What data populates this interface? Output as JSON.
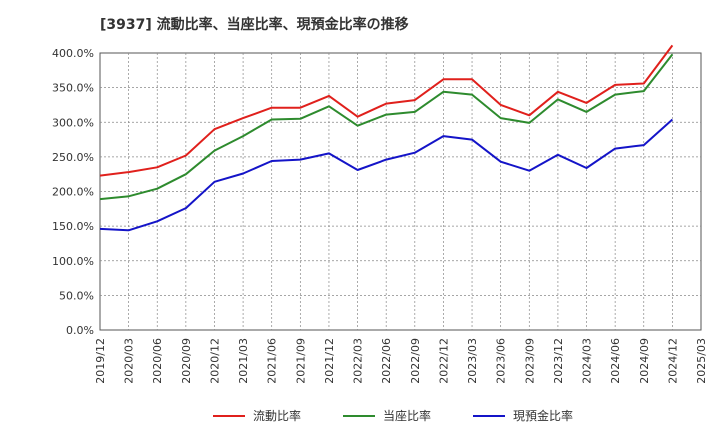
{
  "chart_data": {
    "type": "line",
    "title": "[3937]  流動比率、当座比率、現預金比率の推移",
    "xlabel": "",
    "ylabel": "",
    "ylim": [
      0,
      400
    ],
    "y_ticks": [
      "0.0%",
      "50.0%",
      "100.0%",
      "150.0%",
      "200.0%",
      "250.0%",
      "300.0%",
      "350.0%",
      "400.0%"
    ],
    "y_tick_values": [
      0,
      50,
      100,
      150,
      200,
      250,
      300,
      350,
      400
    ],
    "x_ticks": [
      "2019/12",
      "2020/03",
      "2020/06",
      "2020/09",
      "2020/12",
      "2021/03",
      "2021/06",
      "2021/09",
      "2021/12",
      "2022/03",
      "2022/06",
      "2022/09",
      "2022/12",
      "2023/03",
      "2023/06",
      "2023/09",
      "2023/12",
      "2024/03",
      "2024/06",
      "2024/09",
      "2024/12",
      "2025/03"
    ],
    "categories": [
      "2019/12",
      "2020/03",
      "2020/06",
      "2020/09",
      "2020/12",
      "2021/03",
      "2021/06",
      "2021/09",
      "2021/12",
      "2022/03",
      "2022/06",
      "2022/09",
      "2022/12",
      "2023/03",
      "2023/06",
      "2023/09",
      "2023/12",
      "2024/03",
      "2024/06",
      "2024/09",
      "2024/12"
    ],
    "grid": true,
    "legend_position": "bottom",
    "series": [
      {
        "name": "流動比率",
        "color": "#e0201c",
        "values": [
          223,
          228,
          235,
          252,
          290,
          306,
          321,
          321,
          338,
          308,
          327,
          332,
          362,
          362,
          325,
          310,
          344,
          328,
          354,
          356,
          411
        ]
      },
      {
        "name": "当座比率",
        "color": "#2e8b2e",
        "values": [
          189,
          193,
          204,
          225,
          259,
          280,
          304,
          305,
          323,
          295,
          311,
          315,
          344,
          340,
          306,
          299,
          333,
          315,
          340,
          345,
          398
        ]
      },
      {
        "name": "現預金比率",
        "color": "#1414c8",
        "values": [
          146,
          144,
          157,
          176,
          214,
          226,
          244,
          246,
          255,
          231,
          246,
          256,
          280,
          275,
          243,
          230,
          253,
          234,
          262,
          267,
          304
        ]
      }
    ]
  }
}
